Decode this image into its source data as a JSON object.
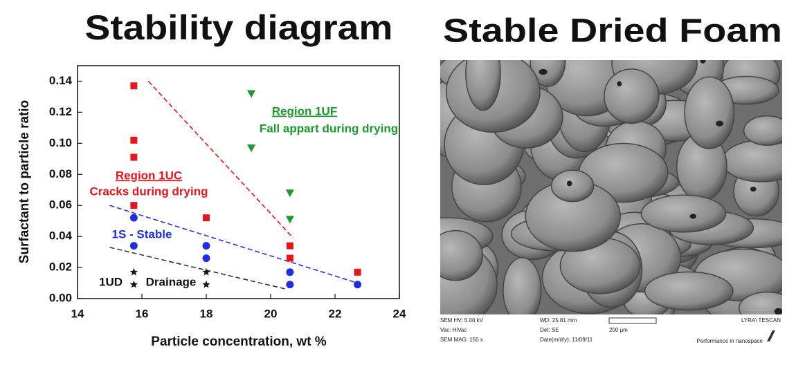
{
  "chart_data": {
    "type": "scatter",
    "title": "Stability diagram",
    "xlabel": "Particle concentration, wt %",
    "ylabel": "Surfactant to particle ratio",
    "xlim": [
      14,
      24
    ],
    "xticks": [
      14,
      16,
      18,
      20,
      22,
      24
    ],
    "ylim": [
      0,
      0.15
    ],
    "yticks": [
      {
        "value": 0,
        "label": "0.00"
      },
      {
        "value": 0.02,
        "label": "0.02"
      },
      {
        "value": 0.04,
        "label": "0.04"
      },
      {
        "value": 0.06,
        "label": "0.06"
      },
      {
        "value": 0.08,
        "label": "0.08"
      },
      {
        "value": 0.1,
        "label": "0.10"
      },
      {
        "value": 0.12,
        "label": "0.12"
      },
      {
        "value": 0.14,
        "label": "0.14"
      }
    ],
    "series": [
      {
        "color": "#e8141b",
        "marker": "square",
        "x": [
          15.75,
          15.75,
          15.75,
          15.75,
          18.0,
          20.6,
          20.6,
          22.7
        ],
        "values": [
          0.137,
          0.102,
          0.091,
          0.06,
          0.052,
          0.034,
          0.026,
          0.017
        ]
      },
      {
        "color": "#1a9a2a",
        "marker": "triangle-down",
        "x": [
          19.4,
          19.4,
          20.6,
          20.6
        ],
        "values": [
          0.132,
          0.097,
          0.068,
          0.051
        ]
      },
      {
        "color": "#1f2ee0",
        "marker": "circle",
        "x": [
          15.75,
          15.75,
          18.0,
          18.0,
          20.6,
          20.6,
          22.7
        ],
        "values": [
          0.052,
          0.034,
          0.034,
          0.026,
          0.017,
          0.009,
          0.009
        ]
      },
      {
        "color": "#111111",
        "marker": "star",
        "x": [
          15.75,
          15.75,
          18.0,
          18.0
        ],
        "values": [
          0.017,
          0.009,
          0.017,
          0.009
        ]
      }
    ],
    "boundaries": [
      {
        "color": "#e8141b",
        "x": [
          16.2,
          20.7
        ],
        "values": [
          0.14,
          0.039
        ]
      },
      {
        "color": "#1f2ee0",
        "x": [
          15.0,
          22.7
        ],
        "values": [
          0.06,
          0.01
        ]
      },
      {
        "color": "#333333",
        "x": [
          15.0,
          20.5
        ],
        "values": [
          0.033,
          0.006
        ]
      }
    ],
    "annotations": [
      {
        "text": "Region 1UC",
        "color": "#e8141b",
        "underline": true
      },
      {
        "text": "Cracks during drying",
        "color": "#e8141b"
      },
      {
        "text": "Region 1UF",
        "color": "#1a9a2a",
        "underline": true
      },
      {
        "text": "Fall appart during drying",
        "color": "#1a9a2a"
      },
      {
        "text": "1S - Stable",
        "color": "#1f2ee0"
      },
      {
        "text": "1UD",
        "color": "#111111"
      },
      {
        "text": "Drainage",
        "color": "#111111"
      }
    ]
  },
  "image_panel": {
    "title": "Stable Dried Foam",
    "info": [
      "SEM HV: 5.00 kV",
      "WD: 25.81 mm",
      "200 μm",
      "LYRA\\ TESCAN",
      "Vac: HiVac",
      "Det: SE",
      "SEM MAG: 150 x",
      "Date(m/d/y): 11/09/11",
      "Performance in nanospace"
    ]
  }
}
